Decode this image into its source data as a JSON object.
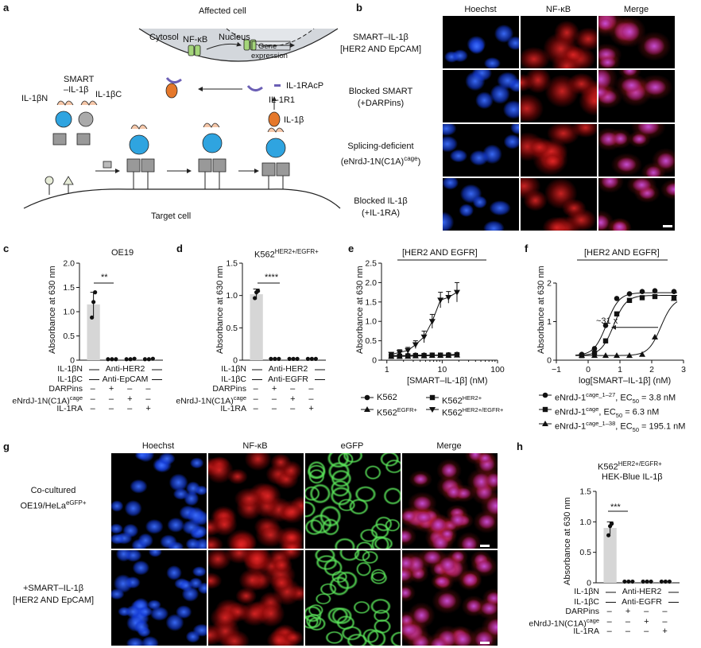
{
  "panels": {
    "a": {
      "label": "a",
      "affected_cell": "Affected cell",
      "cytosol": "Cytosol",
      "nucleus": "Nucleus",
      "nfkb": "NF-κB",
      "gene_expression_1": "Gene",
      "gene_expression_2": "expression",
      "il1racp": "IL-1RAcP",
      "il1r1": "IL-1R1",
      "il1b": "IL-1β",
      "smart_1": "SMART",
      "smart_2": "–IL-1β",
      "il1bn": "IL-1βN",
      "il1bc": "IL-1βC",
      "target_cell": "Target cell"
    },
    "b": {
      "label": "b",
      "columns": [
        "Hoechst",
        "NF-κB",
        "Merge"
      ],
      "rows": [
        {
          "line1": "SMART–IL-1β",
          "line2": "[HER2 AND EpCAM]"
        },
        {
          "line1": "Blocked SMART",
          "line2": "(+DARPins)"
        },
        {
          "line1": "Splicing-deficient",
          "line2": "(eNrdJ-1N(C1A)",
          "sup": "cage",
          "tail": ")"
        },
        {
          "line1": "Blocked IL-1β",
          "line2": "(+IL-1RA)"
        }
      ]
    },
    "c": {
      "label": "c",
      "title": "OE19",
      "ylabel": "Absorbance at 630 nm",
      "sig": "**",
      "rows": [
        {
          "name": "IL-1βN",
          "span": "Anti-HER2"
        },
        {
          "name": "IL-1βC",
          "span": "Anti-EpCAM"
        },
        {
          "name": "DARPins",
          "signs": [
            "–",
            "+",
            "–",
            "–"
          ]
        },
        {
          "name": "eNrdJ-1N(C1A)",
          "sup": "cage",
          "signs": [
            "–",
            "–",
            "+",
            "–"
          ]
        },
        {
          "name": "IL-1RA",
          "signs": [
            "–",
            "–",
            "–",
            "+"
          ]
        }
      ]
    },
    "d": {
      "label": "d",
      "title_main": "K562",
      "title_sup": "HER2+/EGFR+",
      "ylabel": "Absorbance at 630 nm",
      "sig": "****",
      "rows": [
        {
          "name": "IL-1βN",
          "span": "Anti-HER2"
        },
        {
          "name": "IL-1βC",
          "span": "Anti-EGFR"
        },
        {
          "name": "DARPins",
          "signs": [
            "–",
            "+",
            "–",
            "–"
          ]
        },
        {
          "name": "eNrdJ-1N(C1A)",
          "sup": "cage",
          "signs": [
            "–",
            "–",
            "+",
            "–"
          ]
        },
        {
          "name": "IL-1RA",
          "signs": [
            "–",
            "–",
            "–",
            "+"
          ]
        }
      ]
    },
    "e": {
      "label": "e",
      "title": "[HER2 AND EGFR]",
      "ylabel": "Absorbance at 630 nm",
      "xlabel": "[SMART–IL-1β] (nM)",
      "legend": [
        {
          "marker": "circle",
          "name": "K562",
          "sup": ""
        },
        {
          "marker": "square",
          "name": "K562",
          "sup": "HER2+"
        },
        {
          "marker": "triangle",
          "name": "K562",
          "sup": "EGFR+"
        },
        {
          "marker": "triangle-down",
          "name": "K562",
          "sup": "HER2+/EGFR+"
        }
      ]
    },
    "f": {
      "label": "f",
      "title": "[HER2 AND EGFR]",
      "ylabel": "Absorbance at 630 nm",
      "xlabel": "log[SMART–IL-1β] (nM)",
      "fold_annotation": "~31 x",
      "legend": [
        {
          "marker": "circle",
          "name": "eNrdJ-1",
          "sup": "cage_1–27",
          "ec": ", EC",
          "ec_sub": "50",
          "ec_val": " = 3.8 nM"
        },
        {
          "marker": "square",
          "name": "eNrdJ-1",
          "sup": "cage",
          "ec": ", EC",
          "ec_sub": "50",
          "ec_val": " = 6.3 nM"
        },
        {
          "marker": "triangle",
          "name": "eNrdJ-1",
          "sup": "cage_1–38",
          "ec": ", EC",
          "ec_sub": "50",
          "ec_val": " = 195.1 nM"
        }
      ]
    },
    "g": {
      "label": "g",
      "columns": [
        "Hoechst",
        "NF-κB",
        "eGFP",
        "Merge"
      ],
      "rows": [
        {
          "line1": "Co-cultured",
          "line2": "OE19/HeLa",
          "sup": "eGFP+"
        },
        {
          "line1": "+SMART–IL-1β",
          "line2": "[HER2 AND EpCAM]"
        }
      ]
    },
    "h": {
      "label": "h",
      "title_main": "K562",
      "title_sup": "HER2+/EGFR+",
      "title2": "HEK-Blue IL-1β",
      "ylabel": "Absorbance at 630 nm",
      "sig": "***",
      "rows": [
        {
          "name": "IL-1βN",
          "span": "Anti-HER2"
        },
        {
          "name": "IL-1βC",
          "span": "Anti-EGFR"
        },
        {
          "name": "DARPins",
          "signs": [
            "–",
            "+",
            "–",
            "–"
          ]
        },
        {
          "name": "eNrdJ-1N(C1A)",
          "sup": "cage",
          "signs": [
            "–",
            "–",
            "+",
            "–"
          ]
        },
        {
          "name": "IL-1RA",
          "signs": [
            "–",
            "–",
            "–",
            "+"
          ]
        }
      ]
    }
  },
  "chart_data": [
    {
      "id": "c",
      "type": "bar",
      "categories": [
        "1",
        "2",
        "3",
        "4"
      ],
      "values": [
        1.15,
        0.02,
        0.02,
        0.02
      ],
      "error": [
        0.25,
        0.01,
        0.01,
        0.01
      ],
      "points": [
        [
          0.88,
          1.2,
          1.4
        ],
        [
          0.02,
          0.02,
          0.02
        ],
        [
          0.02,
          0.02,
          0.03
        ],
        [
          0.02,
          0.02,
          0.03
        ]
      ],
      "ylim": [
        0,
        2.0
      ],
      "yticks": [
        0,
        0.5,
        1.0,
        1.5,
        2.0
      ],
      "ytick_labels": [
        "0",
        "0.5",
        "1.0",
        "1.5",
        "2.0"
      ]
    },
    {
      "id": "d",
      "type": "bar",
      "categories": [
        "1",
        "2",
        "3",
        "4"
      ],
      "values": [
        1.02,
        0.02,
        0.02,
        0.02
      ],
      "error": [
        0.08,
        0.01,
        0.01,
        0.01
      ],
      "points": [
        [
          0.96,
          1.05,
          1.07
        ],
        [
          0.02,
          0.02,
          0.02
        ],
        [
          0.02,
          0.02,
          0.02
        ],
        [
          0.02,
          0.02,
          0.02
        ]
      ],
      "ylim": [
        0,
        1.5
      ],
      "yticks": [
        0,
        0.5,
        1.0,
        1.5
      ],
      "ytick_labels": [
        "0",
        "0.5",
        "1.0",
        "1.5"
      ]
    },
    {
      "id": "e",
      "type": "line",
      "xscale": "log",
      "xlim": [
        0.8,
        100
      ],
      "xticks": [
        1,
        10,
        100
      ],
      "xtick_labels": [
        "1",
        "10",
        "100"
      ],
      "ylim": [
        0,
        2.5
      ],
      "yticks": [
        0,
        0.5,
        1.0,
        1.5,
        2.0,
        2.5
      ],
      "ytick_labels": [
        "0",
        "0.5",
        "1.0",
        "1.5",
        "2.0",
        "2.5"
      ],
      "series": [
        {
          "marker": "circle",
          "x": [
            1.2,
            1.7,
            2.4,
            3.3,
            4.7,
            6.6,
            9.3,
            13,
            18.5
          ],
          "y": [
            0.12,
            0.12,
            0.12,
            0.13,
            0.13,
            0.13,
            0.13,
            0.14,
            0.15
          ]
        },
        {
          "marker": "square",
          "x": [
            1.2,
            1.7,
            2.4,
            3.3,
            4.7,
            6.6,
            9.3,
            13,
            18.5
          ],
          "y": [
            0.1,
            0.1,
            0.11,
            0.12,
            0.12,
            0.13,
            0.13,
            0.13,
            0.14
          ]
        },
        {
          "marker": "triangle",
          "x": [
            1.2,
            1.7,
            2.4,
            3.3,
            4.7,
            6.6,
            9.3,
            13,
            18.5
          ],
          "y": [
            0.1,
            0.1,
            0.1,
            0.11,
            0.11,
            0.12,
            0.12,
            0.12,
            0.13
          ]
        },
        {
          "marker": "triangle-down",
          "x": [
            1.2,
            1.7,
            2.4,
            3.3,
            4.7,
            6.6,
            9.3,
            13,
            18.5
          ],
          "y": [
            0.15,
            0.2,
            0.25,
            0.4,
            0.6,
            1.0,
            1.55,
            1.62,
            1.75
          ],
          "err": [
            0.05,
            0.07,
            0.08,
            0.1,
            0.15,
            0.18,
            0.2,
            0.15,
            0.25
          ]
        }
      ]
    },
    {
      "id": "f",
      "type": "line",
      "xlim": [
        -1,
        3
      ],
      "xticks": [
        -1,
        0,
        1,
        2,
        3
      ],
      "xtick_labels": [
        "−1",
        "0",
        "1",
        "2",
        "3"
      ],
      "ylim": [
        0,
        2
      ],
      "yticks": [
        0,
        1,
        2
      ],
      "ytick_labels": [
        "0",
        "1",
        "2"
      ],
      "series": [
        {
          "marker": "circle",
          "ec50_log": 0.58,
          "top": 1.75,
          "bottom": 0.12,
          "x": [
            -0.2,
            0.2,
            0.55,
            0.9,
            1.3,
            1.7,
            2.1,
            2.7
          ],
          "y": [
            0.15,
            0.3,
            0.9,
            1.6,
            1.72,
            1.78,
            1.8,
            1.78
          ]
        },
        {
          "marker": "square",
          "ec50_log": 0.8,
          "top": 1.68,
          "bottom": 0.12,
          "x": [
            -0.2,
            0.2,
            0.55,
            0.9,
            1.3,
            1.7,
            2.1,
            2.7
          ],
          "y": [
            0.12,
            0.18,
            0.5,
            1.2,
            1.55,
            1.62,
            1.65,
            1.62
          ]
        },
        {
          "marker": "triangle",
          "ec50_log": 2.29,
          "top": 1.62,
          "bottom": 0.12,
          "x": [
            -0.2,
            0.2,
            0.55,
            0.9,
            1.3,
            1.7,
            2.1,
            2.7
          ],
          "y": [
            0.12,
            0.12,
            0.12,
            0.12,
            0.12,
            0.15,
            0.6,
            1.6
          ]
        }
      ]
    },
    {
      "id": "h",
      "type": "bar",
      "categories": [
        "1",
        "2",
        "3",
        "4"
      ],
      "values": [
        0.9,
        0.02,
        0.02,
        0.02
      ],
      "error": [
        0.1,
        0.01,
        0.01,
        0.01
      ],
      "points": [
        [
          0.78,
          0.93,
          0.97
        ],
        [
          0.02,
          0.02,
          0.02
        ],
        [
          0.02,
          0.02,
          0.02
        ],
        [
          0.02,
          0.02,
          0.02
        ]
      ],
      "ylim": [
        0,
        1.5
      ],
      "yticks": [
        0,
        0.5,
        1.0,
        1.5
      ],
      "ytick_labels": [
        "0",
        "0.5",
        "1.0",
        "1.5"
      ]
    }
  ],
  "colors": {
    "hoechst": "#1a55d8",
    "nfkb": "#d81b1b",
    "egfp": "#3fd63f",
    "grey_bar": "#d6d6d6",
    "cell_grey": "#d3d7dc"
  }
}
